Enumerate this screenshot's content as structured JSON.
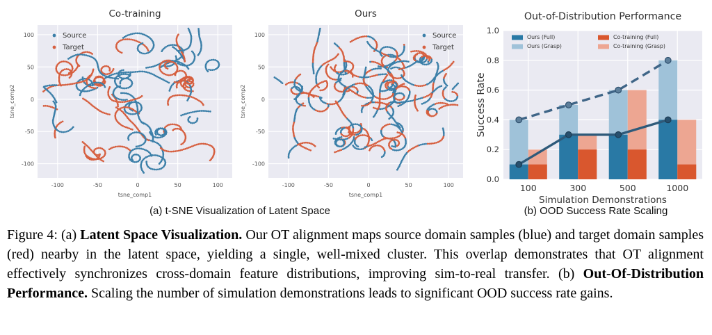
{
  "figure": {
    "subcaption_a": "(a) t-SNE Visualization of Latent Space",
    "subcaption_b": "(b) OOD Success Rate Scaling",
    "caption_segments": [
      {
        "text": "Figure 4: (a) ",
        "bold": false
      },
      {
        "text": "Latent Space Visualization.",
        "bold": true
      },
      {
        "text": " Our OT alignment maps source domain samples (blue) and target domain samples (red) nearby in the latent space, yielding a single, well-mixed cluster. This overlap demonstrates that OT alignment effectively synchronizes cross-domain feature distributions, improving sim-to-real transfer. (b) ",
        "bold": false
      },
      {
        "text": "Out-Of-Distribution Performance.",
        "bold": true
      },
      {
        "text": " Scaling the number of simulation demonstrations leads to significant OOD success rate gains.",
        "bold": false
      }
    ]
  },
  "style": {
    "plot_bg": "#EAEAF2",
    "grid_color": "#ffffff",
    "text_color": "#333333",
    "tick_color": "#555555"
  },
  "chart_data": [
    {
      "type": "scatter",
      "title": "Co-training",
      "xlabel": "tsne_comp1",
      "ylabel": "tsne_comp2",
      "xlim": [
        -125,
        118
      ],
      "ylim": [
        -122,
        115
      ],
      "xticks": [
        -100,
        -50,
        0,
        50,
        100
      ],
      "yticks": [
        -100,
        -50,
        0,
        50,
        100
      ],
      "legend": [
        {
          "label": "Source",
          "color": "#3b7fa8"
        },
        {
          "label": "Target",
          "color": "#d65f3f"
        }
      ],
      "legend_position": "upper-left",
      "point_pattern": "dotted curved strokes (t-SNE worms), source and target strokes separated by color",
      "squiggle_gen": {
        "count": 60,
        "seed": 3,
        "color_mode": "single"
      }
    },
    {
      "type": "scatter",
      "title": "Ours",
      "xlabel": "tsne_comp1",
      "ylabel": "tsne_comp2",
      "xlim": [
        -125,
        118
      ],
      "ylim": [
        -122,
        115
      ],
      "xticks": [
        -100,
        -50,
        0,
        50,
        100
      ],
      "yticks": [
        -100,
        -50,
        0,
        50,
        100
      ],
      "legend": [
        {
          "label": "Source",
          "color": "#3b7fa8"
        },
        {
          "label": "Target",
          "color": "#d65f3f"
        }
      ],
      "legend_position": "upper-right",
      "point_pattern": "dotted curved strokes with source and target interleaved along the same worms (well-mixed)",
      "squiggle_gen": {
        "count": 60,
        "seed": 11,
        "color_mode": "mixed"
      }
    },
    {
      "type": "bar+line",
      "title": "Out-of-Distribution Performance",
      "xlabel": "Simulation Demonstrations",
      "ylabel": "Success Rate",
      "categories": [
        "100",
        "300",
        "500",
        "1000"
      ],
      "ylim": [
        0,
        1.0
      ],
      "yticks": [
        0.0,
        0.2,
        0.4,
        0.6,
        0.8,
        1.0
      ],
      "series": [
        {
          "name": "Ours (Full)",
          "type": "bar",
          "group": "ours",
          "values": [
            0.1,
            0.3,
            0.3,
            0.4
          ],
          "color": "#2979a5"
        },
        {
          "name": "Ours (Grasp)",
          "type": "bar",
          "group": "ours",
          "values": [
            0.4,
            0.5,
            0.6,
            0.8
          ],
          "color": "#9fc2d9"
        },
        {
          "name": "Co-training (Full)",
          "type": "bar",
          "group": "cotraining",
          "values": [
            0.1,
            0.2,
            0.2,
            0.1
          ],
          "color": "#d9572e"
        },
        {
          "name": "Co-training (Grasp)",
          "type": "bar",
          "group": "cotraining",
          "values": [
            0.2,
            0.3,
            0.6,
            0.4
          ],
          "color": "#eda692"
        }
      ],
      "lines": [
        {
          "name": "Ours (Grasp) trend",
          "values": [
            0.4,
            0.5,
            0.6,
            0.8
          ],
          "style": "dashed",
          "color": "#3f6587",
          "marker_fill": "#5d7f9b",
          "marker_edge": "#2e506e"
        },
        {
          "name": "Ours (Full) trend",
          "values": [
            0.1,
            0.3,
            0.3,
            0.4
          ],
          "style": "solid",
          "color": "#2e5a7a",
          "marker_fill": "#27506e",
          "marker_edge": "#1d3c54"
        }
      ],
      "legend_columns": [
        [
          "Ours (Full)",
          "Ours (Grasp)"
        ],
        [
          "Co-training (Full)",
          "Co-training (Grasp)"
        ]
      ],
      "legend_position": "upper-left-inside"
    }
  ]
}
